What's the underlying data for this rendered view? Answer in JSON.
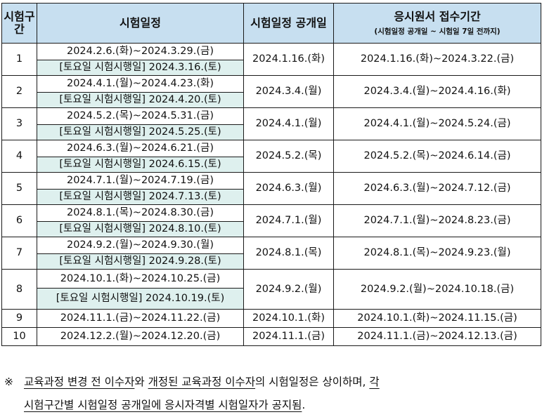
{
  "table": {
    "headers": {
      "section": "시험구간",
      "schedule": "시험일정",
      "publish": "시험일정 공개일",
      "accept_main": "응시원서 접수기간",
      "accept_sub": "(시험일정 공개일 ~ 시험일 7일 전까지)"
    },
    "rows": [
      {
        "no": "1",
        "period": "2024.2.6.(화)~2024.3.29.(금)",
        "saturday": "[토요일 시험시행일] 2024.3.16.(토)",
        "publish": "2024.1.16.(화)",
        "accept": "2024.1.16.(화)~2024.3.22.(금)"
      },
      {
        "no": "2",
        "period": "2024.4.1.(월)~2024.4.23.(화)",
        "saturday": "[토요일 시험시행일] 2024.4.20.(토)",
        "publish": "2024.3.4.(월)",
        "accept": "2024.3.4.(월)~2024.4.16.(화)"
      },
      {
        "no": "3",
        "period": "2024.5.2.(목)~2024.5.31.(금)",
        "saturday": "[토요일 시험시행일] 2024.5.25.(토)",
        "publish": "2024.4.1.(월)",
        "accept": "2024.4.1.(월)~2024.5.24.(금)"
      },
      {
        "no": "4",
        "period": "2024.6.3.(월)~2024.6.21.(금)",
        "saturday": "[토요일 시험시행일] 2024.6.15.(토)",
        "publish": "2024.5.2.(목)",
        "accept": "2024.5.2.(목)~2024.6.14.(금)"
      },
      {
        "no": "5",
        "period": "2024.7.1.(월)~2024.7.19.(금)",
        "saturday": "[토요일 시험시행일] 2024.7.13.(토)",
        "publish": "2024.6.3.(월)",
        "accept": "2024.6.3.(월)~2024.7.12.(금)"
      },
      {
        "no": "6",
        "period": "2024.8.1.(목)~2024.8.30.(금)",
        "saturday": "[토요일 시험시행일] 2024.8.10.(토)",
        "publish": "2024.7.1.(월)",
        "accept": "2024.7.1.(월)~2024.8.23.(금)"
      },
      {
        "no": "7",
        "period": "2024.9.2.(월)~2024.9.30.(월)",
        "saturday": "[토요일 시험시행일] 2024.9.28.(토)",
        "publish": "2024.8.1.(목)",
        "accept": "2024.8.1.(목)~2024.9.23.(월)"
      },
      {
        "no": "8",
        "period": "2024.10.1.(화)~2024.10.25.(금)",
        "saturday": "[토요일 시험시행일] 2024.10.19.(토)",
        "publish": "2024.9.2.(월)",
        "accept": "2024.9.2.(월)~2024.10.18.(금)"
      },
      {
        "no": "9",
        "period": "2024.11.1.(금)~2024.11.22.(금)",
        "saturday": "",
        "publish": "2024.10.1.(화)",
        "accept": "2024.10.1.(화)~2024.11.15.(금)"
      },
      {
        "no": "10",
        "period": "2024.12.2.(월)~2024.12.20.(금)",
        "saturday": "",
        "publish": "2024.11.1.(금)",
        "accept": "2024.11.1.(금)~2024.12.13.(금)"
      }
    ]
  },
  "note": {
    "mark": "※",
    "p1": "교육과정 변경 전 이수자",
    "p2": "와 ",
    "p3": "개정된 교육과정 이수자",
    "p4": "의 시험일정은 상이하며, ",
    "p5": "각",
    "p6": "시험구간별 시험일정 공개일에 응시자격별 시험일자가 공지됨",
    "p7": "."
  }
}
